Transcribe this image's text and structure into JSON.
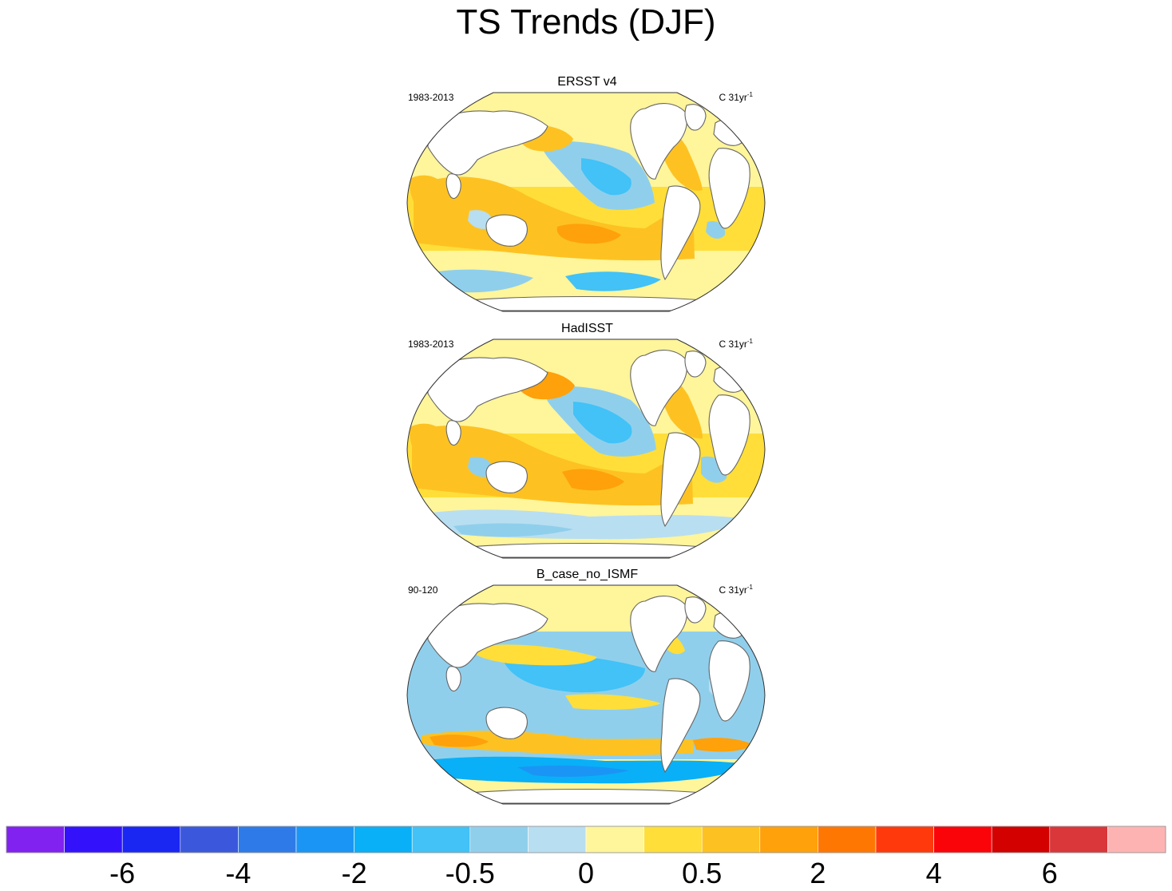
{
  "title": "TS Trends (DJF)",
  "panels": [
    {
      "title": "ERSST v4",
      "period": "1983-2013",
      "units_prefix": "C 31yr",
      "units_exp": "-1",
      "pattern": "warm"
    },
    {
      "title": "HadISST",
      "period": "1983-2013",
      "units_prefix": "C 31yr",
      "units_exp": "-1",
      "pattern": "warm2"
    },
    {
      "title": "B_case_no_ISMF",
      "period": "90-120",
      "units_prefix": "C 31yr",
      "units_exp": "-1",
      "pattern": "cool"
    }
  ],
  "chart_data": {
    "type": "heatmap",
    "title": "TS Trends (DJF)",
    "projection": "global map, Pacific-centered",
    "colorbar": {
      "colors": [
        "#8122f0",
        "#3312fb",
        "#1a26f2",
        "#3b58dc",
        "#2f7ae9",
        "#1a95f5",
        "#09b0f7",
        "#42c2f6",
        "#90cfec",
        "#b8def1",
        "#fff59b",
        "#ffde3a",
        "#fdc222",
        "#fea10a",
        "#ff7703",
        "#ff390b",
        "#fa0409",
        "#d30100",
        "#d9373a",
        "#feb3b3"
      ],
      "labels": [
        {
          "text": "-6",
          "boundary": 2
        },
        {
          "text": "-4",
          "boundary": 4
        },
        {
          "text": "-2",
          "boundary": 6
        },
        {
          "text": "-0.5",
          "boundary": 8
        },
        {
          "text": "0",
          "boundary": 10
        },
        {
          "text": "0.5",
          "boundary": 12
        },
        {
          "text": "2",
          "boundary": 14
        },
        {
          "text": "4",
          "boundary": 16
        },
        {
          "text": "6",
          "boundary": 18
        }
      ]
    }
  }
}
